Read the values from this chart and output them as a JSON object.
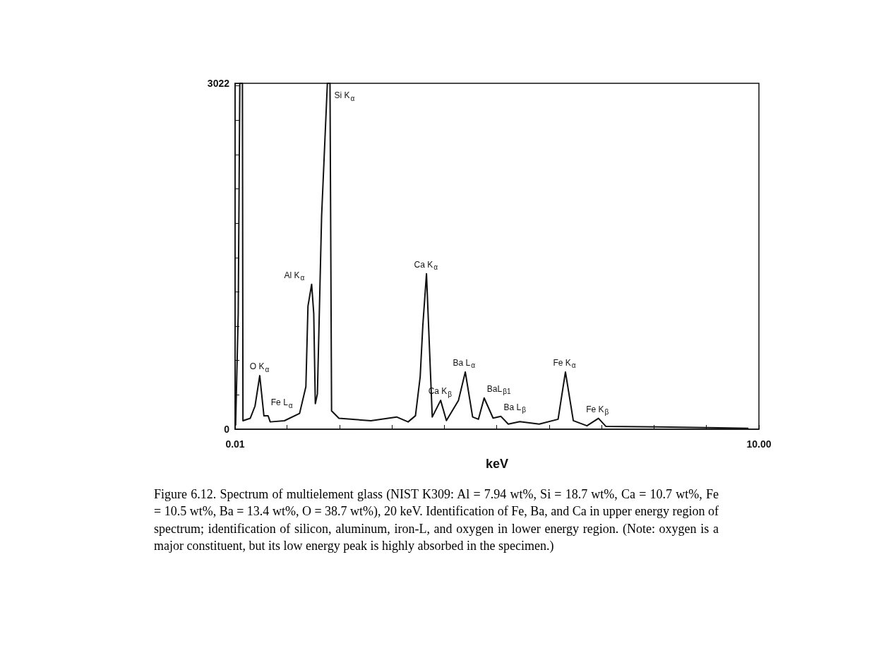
{
  "chart_data": {
    "type": "line",
    "xlabel": "keV",
    "x": [
      0.02,
      0.07,
      0.1,
      0.15,
      0.16,
      0.3,
      0.39,
      0.48,
      0.56,
      0.64,
      0.68,
      0.95,
      1.24,
      1.36,
      1.4,
      1.47,
      1.51,
      1.54,
      1.58,
      1.66,
      1.77,
      1.82,
      1.85,
      1.99,
      2.6,
      3.09,
      3.31,
      3.45,
      3.54,
      3.59,
      3.66,
      3.77,
      3.93,
      4.04,
      4.27,
      4.4,
      4.54,
      4.65,
      4.76,
      4.93,
      5.08,
      5.22,
      5.44,
      5.81,
      6.17,
      6.31,
      6.46,
      6.72,
      6.94,
      7.08,
      8.08,
      9.8
    ],
    "series": [
      {
        "color": "#111111",
        "values": [
          32,
          1011,
          3022,
          3022,
          74,
          96,
          202,
          468,
          117,
          117,
          64,
          74,
          138,
          372,
          1075,
          1266,
          1011,
          223,
          309,
          1862,
          3022,
          3022,
          160,
          96,
          74,
          107,
          64,
          118,
          459,
          904,
          1358,
          107,
          252,
          76,
          252,
          500,
          107,
          87,
          273,
          97,
          112,
          45,
          66,
          45,
          87,
          500,
          75,
          30,
          95,
          25,
          20,
          8
        ]
      }
    ],
    "xlim": [
      0.01,
      10
    ],
    "ylim": [
      0,
      3022
    ],
    "xticks": [
      0.01,
      {
        "value": 1,
        "label": null
      },
      {
        "value": 2,
        "label": null
      },
      {
        "value": 3,
        "label": null
      },
      {
        "value": 4,
        "label": null
      },
      {
        "value": 5,
        "label": null
      },
      {
        "value": 6,
        "label": null
      },
      {
        "value": 7,
        "label": null
      },
      {
        "value": 8,
        "label": null
      },
      {
        "value": 9,
        "label": null
      },
      {
        "value": 10,
        "label": "10.00"
      }
    ],
    "yticks": [
      0,
      {
        "value": 300,
        "label": null
      },
      {
        "value": 600,
        "label": null
      },
      {
        "value": 900,
        "label": null
      },
      {
        "value": 1200,
        "label": null
      },
      {
        "value": 1500,
        "label": null
      },
      {
        "value": 1800,
        "label": null
      },
      {
        "value": 2100,
        "label": null
      },
      {
        "value": 2400,
        "label": null
      },
      {
        "value": 2700,
        "label": null
      },
      {
        "value": 3000,
        "label": null
      },
      3022
    ],
    "marker": "none",
    "line_style": "solid",
    "grid": false,
    "annotations": [
      {
        "text": "O K$_{α}$",
        "x": 0.48,
        "y": 468
      },
      {
        "text": "Fe L$_{α}$",
        "x": 0.64,
        "y": 117
      },
      {
        "text": "Al K$_{α}$",
        "x": 1.47,
        "y": 1266
      },
      {
        "text": "Si K$_{α}$",
        "x": 1.82,
        "y": 3022
      },
      {
        "text": "Ca K$_{α}$",
        "x": 3.66,
        "y": 1358
      },
      {
        "text": "Ca K$_{β}$",
        "x": 3.93,
        "y": 252
      },
      {
        "text": "Ba L$_{α}$",
        "x": 4.4,
        "y": 500
      },
      {
        "text": "BaL$_{β1}$",
        "x": 4.76,
        "y": 273
      },
      {
        "text": "Ba L$_{β}$",
        "x": 5.08,
        "y": 112
      },
      {
        "text": "Fe K$_{α}$",
        "x": 6.31,
        "y": 500
      },
      {
        "text": "Fe K$_{β}$",
        "x": 6.94,
        "y": 95
      },
      "Figure 6.12. Spectrum of multielement glass (NIST K309: Al = 7.94 wt%, Si = 18.7 wt%, Ca = 10.7 wt%, Fe = 10.5 wt%, Ba = 13.4 wt%, O = 38.7 wt%), 20 keV. Identification of Fe, Ba, and Ca in upper energy region of spectrum; identification of silicon, aluminum, iron-L, and oxygen in lower energy region. (Note: oxygen is a major constituent, but its low energy peak is highly absorbed in the specimen.)"
    ]
  }
}
